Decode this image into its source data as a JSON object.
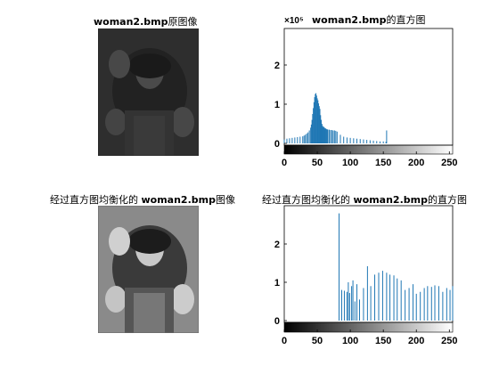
{
  "titles": {
    "original_image": {
      "prefix": "",
      "bold": "woman2.bmp",
      "suffix": "原图像"
    },
    "original_hist": {
      "prefix": "",
      "bold": "woman2.bmp",
      "suffix": "的直方图"
    },
    "equalized_image": {
      "prefix": "经过直方图均衡化的 ",
      "bold": "woman2.bmp",
      "suffix": "图像"
    },
    "equalized_hist": {
      "prefix": "经过直方图均衡化的 ",
      "bold": "woman2.bmp",
      "suffix": "的直方图"
    }
  },
  "colors": {
    "bar": "#1f77b4",
    "axis": "#000000",
    "background": "#ffffff"
  },
  "chart_data": [
    {
      "type": "bar",
      "title": "woman2.bmp的直方图",
      "exponent_label": "×10⁵",
      "xlim": [
        0,
        255
      ],
      "ylim": [
        0,
        2.8
      ],
      "xticks": [
        "0",
        "50",
        "100",
        "150",
        "200",
        "250"
      ],
      "yticks": [
        "0",
        "1",
        "2"
      ],
      "colorbar": "gray",
      "x": [
        0,
        4,
        8,
        12,
        16,
        20,
        24,
        28,
        30,
        32,
        34,
        36,
        38,
        40,
        41,
        42,
        43,
        44,
        45,
        46,
        47,
        48,
        49,
        50,
        51,
        52,
        53,
        54,
        55,
        56,
        57,
        58,
        59,
        60,
        61,
        62,
        63,
        64,
        65,
        66,
        68,
        70,
        72,
        74,
        76,
        78,
        80,
        85,
        90,
        95,
        100,
        105,
        110,
        115,
        120,
        125,
        130,
        135,
        140,
        145,
        150,
        154,
        155
      ],
      "values": [
        0.1,
        0.12,
        0.13,
        0.14,
        0.15,
        0.16,
        0.17,
        0.18,
        0.2,
        0.22,
        0.25,
        0.28,
        0.33,
        0.4,
        0.48,
        0.6,
        0.75,
        0.9,
        1.05,
        1.18,
        1.26,
        1.28,
        1.22,
        1.15,
        1.1,
        1.02,
        0.95,
        0.88,
        0.72,
        0.6,
        0.5,
        0.45,
        0.42,
        0.42,
        0.4,
        0.38,
        0.38,
        0.36,
        0.36,
        0.35,
        0.35,
        0.34,
        0.34,
        0.33,
        0.33,
        0.32,
        0.3,
        0.22,
        0.17,
        0.15,
        0.14,
        0.13,
        0.12,
        0.11,
        0.1,
        0.09,
        0.08,
        0.07,
        0.06,
        0.05,
        0.05,
        0.04,
        0.33
      ]
    },
    {
      "type": "bar",
      "title": "经过直方图均衡化的 woman2.bmp的直方图",
      "exponent_label": "",
      "xlim": [
        0,
        255
      ],
      "ylim": [
        0,
        2.8
      ],
      "xticks": [
        "0",
        "50",
        "100",
        "150",
        "200",
        "250"
      ],
      "yticks": [
        "0",
        "1",
        "2"
      ],
      "colorbar": "gray",
      "x": [
        83,
        87,
        91,
        95,
        97,
        99,
        102,
        104,
        107,
        110,
        114,
        120,
        126,
        131,
        137,
        143,
        149,
        155,
        160,
        166,
        171,
        177,
        183,
        189,
        195,
        200,
        206,
        212,
        217,
        223,
        228,
        234,
        240,
        246,
        251,
        255
      ],
      "values": [
        2.8,
        0.8,
        0.78,
        0.75,
        1.0,
        0.72,
        0.9,
        1.05,
        0.5,
        0.95,
        0.55,
        0.85,
        1.42,
        0.9,
        1.2,
        1.25,
        1.3,
        1.25,
        1.2,
        1.18,
        1.1,
        1.05,
        0.8,
        0.85,
        0.95,
        0.7,
        0.75,
        0.85,
        0.9,
        0.88,
        0.92,
        0.9,
        0.75,
        0.85,
        0.8,
        0.9
      ]
    }
  ]
}
